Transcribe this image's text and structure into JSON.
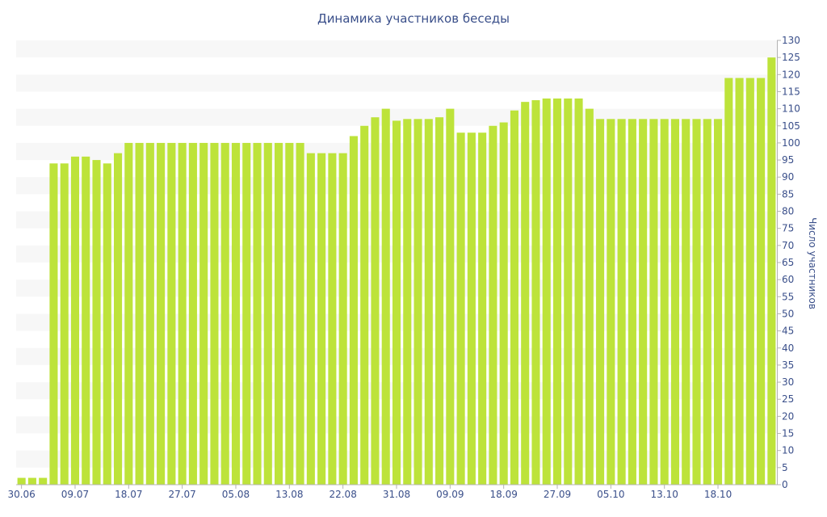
{
  "chart_data": {
    "type": "bar",
    "title": "Динамика участников беседы",
    "xlabel": "",
    "ylabel": "Число участников",
    "ylim": [
      0,
      130
    ],
    "y_ticks": [
      0,
      5,
      10,
      15,
      20,
      25,
      30,
      35,
      40,
      45,
      50,
      55,
      60,
      65,
      70,
      75,
      80,
      85,
      90,
      95,
      100,
      105,
      110,
      115,
      120,
      125,
      130
    ],
    "x_tick_labels": [
      "30.06",
      "09.07",
      "18.07",
      "27.07",
      "05.08",
      "13.08",
      "22.08",
      "31.08",
      "09.09",
      "18.09",
      "27.09",
      "05.10",
      "13.10",
      "18.10"
    ],
    "x_tick_indices": [
      0,
      5,
      10,
      15,
      20,
      25,
      30,
      35,
      40,
      45,
      50,
      55,
      60,
      65
    ],
    "values": [
      2,
      2,
      2,
      94,
      94,
      96,
      96,
      95,
      94,
      97,
      100,
      100,
      100,
      100,
      100,
      100,
      100,
      100,
      100,
      100,
      100,
      100,
      100,
      100,
      100,
      100,
      100,
      97,
      97,
      97,
      97,
      102,
      105,
      107.5,
      110,
      106.5,
      107,
      107,
      107,
      107.5,
      110,
      103,
      103,
      103,
      105,
      106,
      109.5,
      112,
      112.5,
      113,
      113,
      113,
      113,
      110,
      107,
      107,
      107,
      107,
      107,
      107,
      107,
      107,
      107,
      107,
      107,
      107,
      119,
      119,
      119,
      119,
      125
    ],
    "grid": "horizontal bands",
    "colors": {
      "bar": "#bde33a",
      "band": "#f7f7f7",
      "text": "#3a4f8a",
      "axis": "#b3b3b3"
    }
  }
}
